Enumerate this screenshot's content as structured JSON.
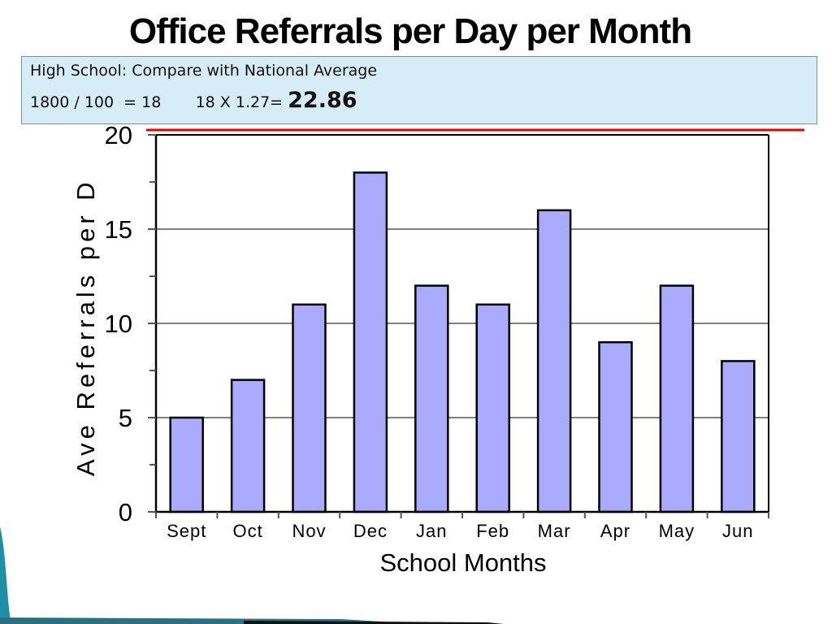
{
  "slide": {
    "title": "Office Referrals per Day per Month"
  },
  "callout": {
    "line1": "High School: Compare with National Average",
    "line2_a": "1800 / 100  = 18       18 X 1.27= ",
    "line2_b": "22.86"
  },
  "colors": {
    "bar_fill": "#aaaaff",
    "reference_line": "#e00000",
    "callout_bg": "#d6ecf6",
    "decor_teal": "#1f8fa8"
  },
  "chart_data": {
    "type": "bar",
    "title": "",
    "xlabel": "School Months",
    "ylabel": "Ave Referrals per D",
    "categories": [
      "Sept",
      "Oct",
      "Nov",
      "Dec",
      "Jan",
      "Feb",
      "Mar",
      "Apr",
      "May",
      "Jun"
    ],
    "values": [
      5,
      7,
      11,
      18,
      12,
      11,
      16,
      9,
      12,
      8
    ],
    "ylim": [
      0,
      20
    ],
    "yticks": [
      "0",
      "5",
      "10",
      "15",
      "20"
    ],
    "grid": true,
    "reference_line_value": 22.86
  }
}
